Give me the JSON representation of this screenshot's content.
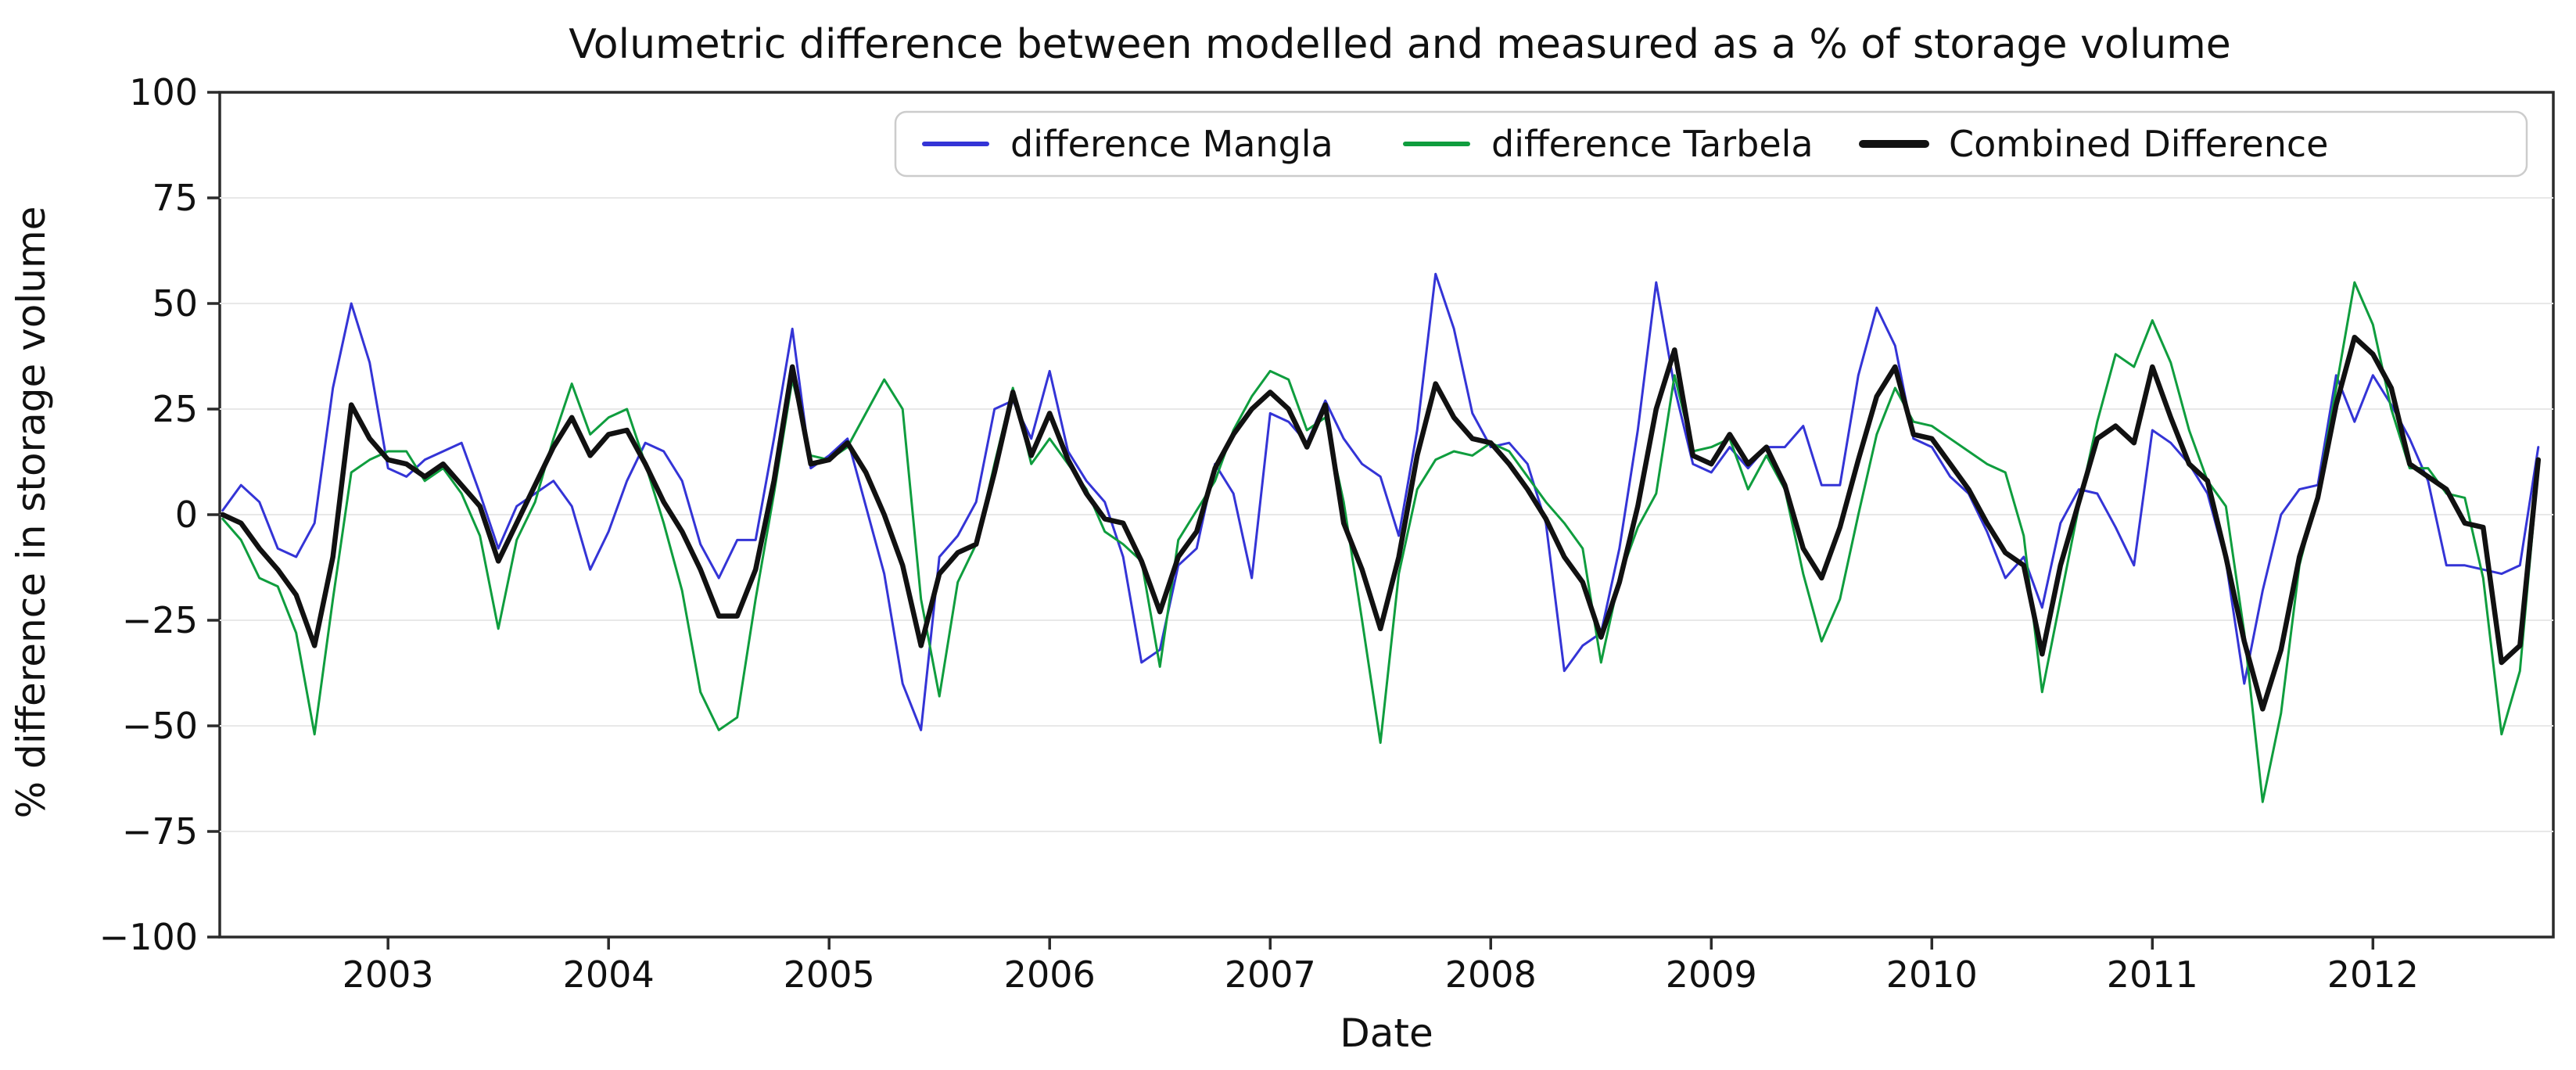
{
  "title": "Volumetric difference between modelled and measured as a % of storage volume",
  "axes": {
    "x_label": "Date",
    "y_label": "% difference in storage volume",
    "y_ticks": [
      100,
      75,
      50,
      25,
      0,
      -25,
      -50,
      -75,
      -100
    ],
    "y_tick_labels": [
      "100",
      "75",
      "50",
      "25",
      "0",
      "−25",
      "−50",
      "−75",
      "−100"
    ],
    "x_ticks": [
      2003,
      2004,
      2005,
      2006,
      2007,
      2008,
      2009,
      2010,
      2011,
      2012
    ],
    "x_tick_labels": [
      "2003",
      "2004",
      "2005",
      "2006",
      "2007",
      "2008",
      "2009",
      "2010",
      "2011",
      "2012"
    ]
  },
  "colors": {
    "mangla_blue": "#3434d6",
    "tarbela_green": "#0f9d3e",
    "combined_black": "#111111",
    "gridline": "#e8e8e8",
    "spine": "#2b2b2b",
    "legend_border": "#cccccc"
  },
  "chart_data": {
    "type": "line",
    "title": "Volumetric difference between modelled and measured as a % of storage volume",
    "xlabel": "Date",
    "ylabel": "% difference in storage volume",
    "xlim": [
      2002.237,
      2012.818
    ],
    "ylim": [
      -100,
      100
    ],
    "grid": "horizontal",
    "legend_position": "upper center",
    "x_unit": "decimal_year_monthly",
    "x_start": 2002.25,
    "x_step": 0.0833333,
    "n_points": 127,
    "series": [
      {
        "name": "difference Mangla",
        "color": "#3434d6",
        "line_width": 3,
        "legend_line_width": 6,
        "values": [
          1,
          7,
          3,
          -8,
          -10,
          -2,
          30,
          50,
          36,
          11,
          9,
          13,
          15,
          17,
          5,
          -8,
          2,
          5,
          8,
          2,
          -13,
          -4,
          8,
          17,
          15,
          8,
          -7,
          -15,
          -6,
          -6,
          18,
          44,
          11,
          14,
          18,
          2,
          -14,
          -40,
          -51,
          -10,
          -5,
          3,
          25,
          27,
          18,
          34,
          15,
          8,
          3,
          -10,
          -35,
          -32,
          -12,
          -8,
          12,
          5,
          -15,
          24,
          22,
          17,
          27,
          18,
          12,
          9,
          -5,
          20,
          57,
          44,
          24,
          16,
          17,
          12,
          -2,
          -37,
          -31,
          -28,
          -8,
          20,
          55,
          30,
          12,
          10,
          16,
          11,
          16,
          16,
          21,
          7,
          7,
          33,
          49,
          40,
          18,
          16,
          9,
          5,
          -4,
          -15,
          -10,
          -22,
          -2,
          6,
          5,
          -3,
          -12,
          20,
          17,
          12,
          5,
          -11,
          -40,
          -18,
          0,
          6,
          7,
          33,
          22,
          33,
          26,
          18,
          8,
          -12,
          -12,
          -13,
          -14,
          -12,
          16
        ]
      },
      {
        "name": "difference Tarbela",
        "color": "#0f9d3e",
        "line_width": 3,
        "legend_line_width": 6,
        "values": [
          -1,
          -6,
          -15,
          -17,
          -28,
          -52,
          -20,
          10,
          13,
          15,
          15,
          8,
          11,
          5,
          -5,
          -27,
          -6,
          3,
          18,
          31,
          19,
          23,
          25,
          12,
          -2,
          -18,
          -42,
          -51,
          -48,
          -20,
          5,
          32,
          14,
          13,
          16,
          24,
          32,
          25,
          -20,
          -43,
          -16,
          -7,
          12,
          30,
          12,
          18,
          12,
          6,
          -4,
          -7,
          -11,
          -36,
          -6,
          1,
          8,
          20,
          28,
          34,
          32,
          20,
          23,
          3,
          -25,
          -54,
          -14,
          6,
          13,
          15,
          14,
          17,
          15,
          9,
          3,
          -2,
          -8,
          -35,
          -15,
          -3,
          5,
          33,
          15,
          16,
          18,
          6,
          14,
          6,
          -14,
          -30,
          -20,
          0,
          19,
          30,
          22,
          21,
          18,
          15,
          12,
          10,
          -5,
          -42,
          -20,
          2,
          22,
          38,
          35,
          46,
          36,
          20,
          8,
          2,
          -28,
          -68,
          -47,
          -12,
          5,
          30,
          55,
          45,
          25,
          11,
          11,
          5,
          4,
          -15,
          -52,
          -37,
          11
        ]
      },
      {
        "name": "Combined Difference",
        "color": "#111111",
        "line_width": 6.5,
        "legend_line_width": 10,
        "values": [
          0,
          -2,
          -8,
          -13,
          -19,
          -31,
          -10,
          26,
          18,
          13,
          12,
          9,
          12,
          7,
          2,
          -11,
          -2,
          7,
          16,
          23,
          14,
          19,
          20,
          12,
          3,
          -4,
          -13,
          -24,
          -24,
          -13,
          8,
          35,
          12,
          13,
          17,
          10,
          0,
          -12,
          -31,
          -14,
          -9,
          -7,
          10,
          29,
          14,
          24,
          13,
          5,
          -1,
          -2,
          -11,
          -23,
          -10,
          -4,
          11,
          19,
          25,
          29,
          25,
          16,
          26,
          -2,
          -13,
          -27,
          -10,
          14,
          31,
          23,
          18,
          17,
          12,
          6,
          -1,
          -10,
          -16,
          -29,
          -16,
          2,
          25,
          39,
          14,
          12,
          19,
          12,
          16,
          7,
          -8,
          -15,
          -3,
          13,
          28,
          35,
          19,
          18,
          12,
          6,
          -2,
          -9,
          -12,
          -33,
          -12,
          3,
          18,
          21,
          17,
          35,
          23,
          12,
          8,
          -10,
          -30,
          -46,
          -32,
          -10,
          4,
          26,
          42,
          38,
          30,
          12,
          9,
          6,
          -2,
          -3,
          -35,
          -31,
          13
        ]
      }
    ]
  }
}
